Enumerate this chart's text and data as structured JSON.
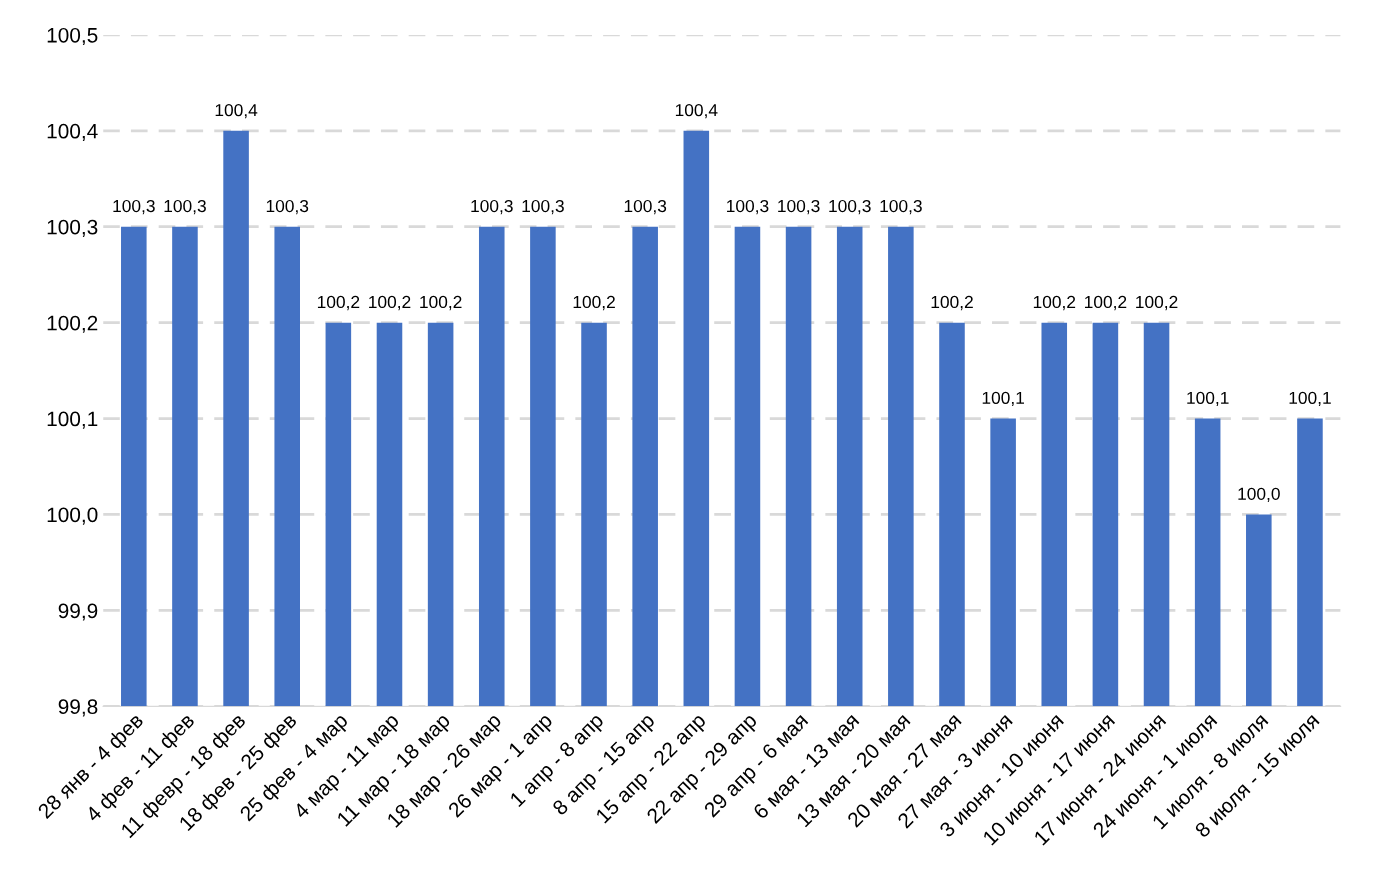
{
  "chart_data": {
    "type": "bar",
    "categories": [
      "28 янв - 4 фев",
      "4 фев - 11 фев",
      "11 февр - 18 фев",
      "18 фев - 25 фев",
      "25 фев - 4 мар",
      "4 мар - 11 мар",
      "11 мар - 18 мар",
      "18 мар - 26 мар",
      "26 мар - 1 апр",
      "1 апр - 8 апр",
      "8 апр - 15 апр",
      "15 апр - 22 апр",
      "22 апр - 29 апр",
      "29 апр - 6 мая",
      "6 мая - 13 мая",
      "13 мая - 20 мая",
      "20 мая - 27 мая",
      "27 мая - 3 июня",
      "3 июня - 10 июня",
      "10 июня - 17 июня",
      "17 июня - 24 июня",
      "24 июня - 1 июля",
      "1 июля - 8 июля",
      "8 июля - 15 июля"
    ],
    "values": [
      100.3,
      100.3,
      100.4,
      100.3,
      100.2,
      100.2,
      100.2,
      100.3,
      100.3,
      100.2,
      100.3,
      100.4,
      100.3,
      100.3,
      100.3,
      100.3,
      100.2,
      100.1,
      100.2,
      100.2,
      100.2,
      100.1,
      100.0,
      100.1
    ],
    "value_labels": [
      "100,3",
      "100,3",
      "100,4",
      "100,3",
      "100,2",
      "100,2",
      "100,2",
      "100,3",
      "100,3",
      "100,2",
      "100,3",
      "100,4",
      "100,3",
      "100,3",
      "100,3",
      "100,3",
      "100,2",
      "100,1",
      "100,2",
      "100,2",
      "100,2",
      "100,1",
      "100,0",
      "100,1"
    ],
    "color": "#4472c4",
    "ylim": [
      99.8,
      100.5
    ],
    "yticks": [
      {
        "value": 99.8,
        "label": "99,8"
      },
      {
        "value": 99.9,
        "label": "99,9"
      },
      {
        "value": 100.0,
        "label": "100,0"
      },
      {
        "value": 100.1,
        "label": "100,1"
      },
      {
        "value": 100.2,
        "label": "100,2"
      },
      {
        "value": 100.3,
        "label": "100,3"
      },
      {
        "value": 100.4,
        "label": "100,4"
      },
      {
        "value": 100.5,
        "label": "100,5"
      }
    ],
    "grid": "y",
    "line_style": "dashed"
  }
}
